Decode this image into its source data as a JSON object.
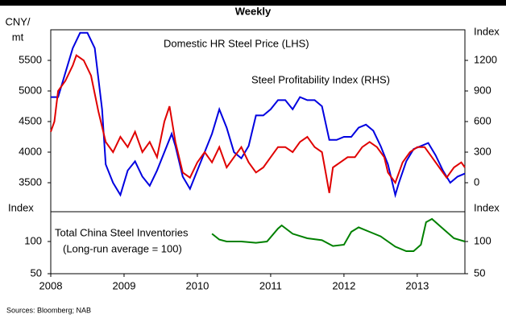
{
  "chart_data": [
    {
      "type": "line",
      "title": "Weekly",
      "ylabel": [
        "CNY/",
        "mt"
      ],
      "y2label": "Index",
      "xlim": [
        2008,
        2013.65
      ],
      "ylim": [
        3000,
        6000
      ],
      "yticks": [
        3500,
        4000,
        4500,
        5000,
        5500
      ],
      "y2lim": [
        -300,
        1500
      ],
      "y2ticks": [
        0,
        300,
        600,
        900,
        1200
      ],
      "series": [
        {
          "name": "Domestic HR Steel Price (LHS)",
          "color": "#0000e0",
          "axis": "y",
          "x": [
            2008.0,
            2008.1,
            2008.2,
            2008.3,
            2008.4,
            2008.5,
            2008.6,
            2008.7,
            2008.75,
            2008.85,
            2008.95,
            2009.05,
            2009.15,
            2009.25,
            2009.35,
            2009.45,
            2009.55,
            2009.65,
            2009.7,
            2009.8,
            2009.9,
            2010.0,
            2010.1,
            2010.2,
            2010.3,
            2010.4,
            2010.5,
            2010.6,
            2010.7,
            2010.8,
            2010.9,
            2011.0,
            2011.1,
            2011.2,
            2011.3,
            2011.4,
            2011.5,
            2011.6,
            2011.7,
            2011.8,
            2011.9,
            2012.0,
            2012.1,
            2012.2,
            2012.3,
            2012.4,
            2012.5,
            2012.6,
            2012.7,
            2012.75,
            2012.85,
            2012.95,
            2013.05,
            2013.15,
            2013.25,
            2013.35,
            2013.45,
            2013.55,
            2013.65
          ],
          "values": [
            4900,
            4900,
            5300,
            5700,
            5950,
            5950,
            5700,
            4700,
            3800,
            3500,
            3300,
            3700,
            3850,
            3600,
            3450,
            3700,
            4000,
            4300,
            4100,
            3600,
            3400,
            3700,
            4000,
            4300,
            4700,
            4400,
            4000,
            3900,
            4100,
            4600,
            4600,
            4700,
            4850,
            4850,
            4700,
            4900,
            4850,
            4850,
            4750,
            4200,
            4200,
            4250,
            4250,
            4400,
            4450,
            4350,
            4100,
            3800,
            3300,
            3500,
            3850,
            4050,
            4100,
            4150,
            3950,
            3700,
            3500,
            3600,
            3650
          ]
        },
        {
          "name": "Steel Profitability Index (RHS)",
          "color": "#e00000",
          "axis": "y2",
          "x": [
            2008.0,
            2008.05,
            2008.1,
            2008.2,
            2008.3,
            2008.35,
            2008.45,
            2008.55,
            2008.65,
            2008.75,
            2008.85,
            2008.95,
            2009.05,
            2009.15,
            2009.25,
            2009.35,
            2009.45,
            2009.55,
            2009.62,
            2009.7,
            2009.8,
            2009.9,
            2010.0,
            2010.1,
            2010.2,
            2010.3,
            2010.4,
            2010.5,
            2010.6,
            2010.7,
            2010.8,
            2010.9,
            2011.0,
            2011.1,
            2011.2,
            2011.3,
            2011.4,
            2011.5,
            2011.6,
            2011.7,
            2011.75,
            2011.8,
            2011.85,
            2011.95,
            2012.05,
            2012.15,
            2012.25,
            2012.35,
            2012.45,
            2012.55,
            2012.6,
            2012.7,
            2012.8,
            2012.9,
            2013.0,
            2013.1,
            2013.2,
            2013.3,
            2013.4,
            2013.5,
            2013.6,
            2013.65
          ],
          "values": [
            500,
            600,
            900,
            1000,
            1150,
            1250,
            1200,
            1050,
            700,
            400,
            300,
            450,
            350,
            500,
            300,
            400,
            250,
            600,
            750,
            400,
            100,
            50,
            200,
            300,
            200,
            350,
            150,
            250,
            350,
            200,
            100,
            150,
            250,
            350,
            350,
            300,
            400,
            450,
            350,
            300,
            100,
            -100,
            150,
            200,
            250,
            250,
            350,
            400,
            350,
            250,
            100,
            0,
            200,
            300,
            350,
            350,
            250,
            150,
            50,
            150,
            200,
            150
          ]
        }
      ]
    },
    {
      "type": "line",
      "ylabel": "Index",
      "y2label": "Index",
      "xlim": [
        2008,
        2013.65
      ],
      "xticks": [
        2008,
        2009,
        2010,
        2011,
        2012,
        2013
      ],
      "ylim": [
        50,
        150
      ],
      "yticks": [
        50,
        100
      ],
      "y2lim": [
        50,
        150
      ],
      "y2ticks": [
        50,
        100
      ],
      "series": [
        {
          "name": [
            "Total China Steel Inventories",
            "(Long-run average = 100)"
          ],
          "color": "#008000",
          "axis": "y",
          "x": [
            2010.2,
            2010.3,
            2010.4,
            2010.6,
            2010.8,
            2010.95,
            2011.1,
            2011.15,
            2011.3,
            2011.5,
            2011.7,
            2011.85,
            2012.0,
            2012.1,
            2012.2,
            2012.35,
            2012.5,
            2012.7,
            2012.85,
            2012.95,
            2013.05,
            2013.12,
            2013.2,
            2013.35,
            2013.5,
            2013.65
          ],
          "values": [
            112,
            103,
            100,
            100,
            98,
            100,
            120,
            125,
            112,
            105,
            102,
            93,
            95,
            115,
            122,
            115,
            108,
            92,
            85,
            85,
            95,
            130,
            135,
            120,
            105,
            100
          ]
        }
      ]
    }
  ],
  "source": "Sources: Bloomberg; NAB"
}
